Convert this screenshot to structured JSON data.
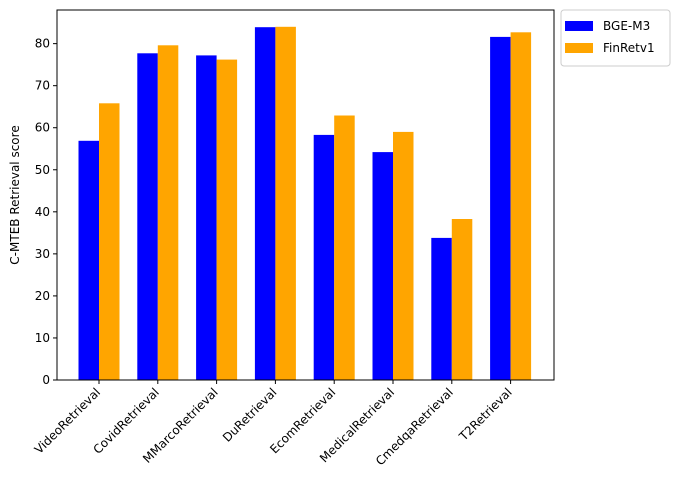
{
  "chart_data": {
    "type": "bar",
    "title": "",
    "xlabel": "",
    "ylabel": "C-MTEB Retrieval score",
    "categories": [
      "VideoRetrieval",
      "CovidRetrieval",
      "MMarcoRetrieval",
      "DuRetrieval",
      "EcomRetrieval",
      "MedicalRetrieval",
      "CmedqaRetrieval",
      "T2Retrieval"
    ],
    "series": [
      {
        "name": "BGE-M3",
        "color": "#0000ff",
        "values": [
          56.9,
          77.7,
          77.2,
          83.9,
          58.3,
          54.2,
          33.8,
          81.6
        ]
      },
      {
        "name": "FinRetv1",
        "color": "#ffa500",
        "values": [
          65.8,
          79.6,
          76.2,
          84.0,
          62.9,
          59.0,
          38.3,
          82.7
        ]
      }
    ],
    "ylim": [
      0,
      88
    ],
    "yticks": [
      0,
      10,
      20,
      30,
      40,
      50,
      60,
      70,
      80
    ],
    "grid": false,
    "legend_position": "outside-top-right"
  }
}
